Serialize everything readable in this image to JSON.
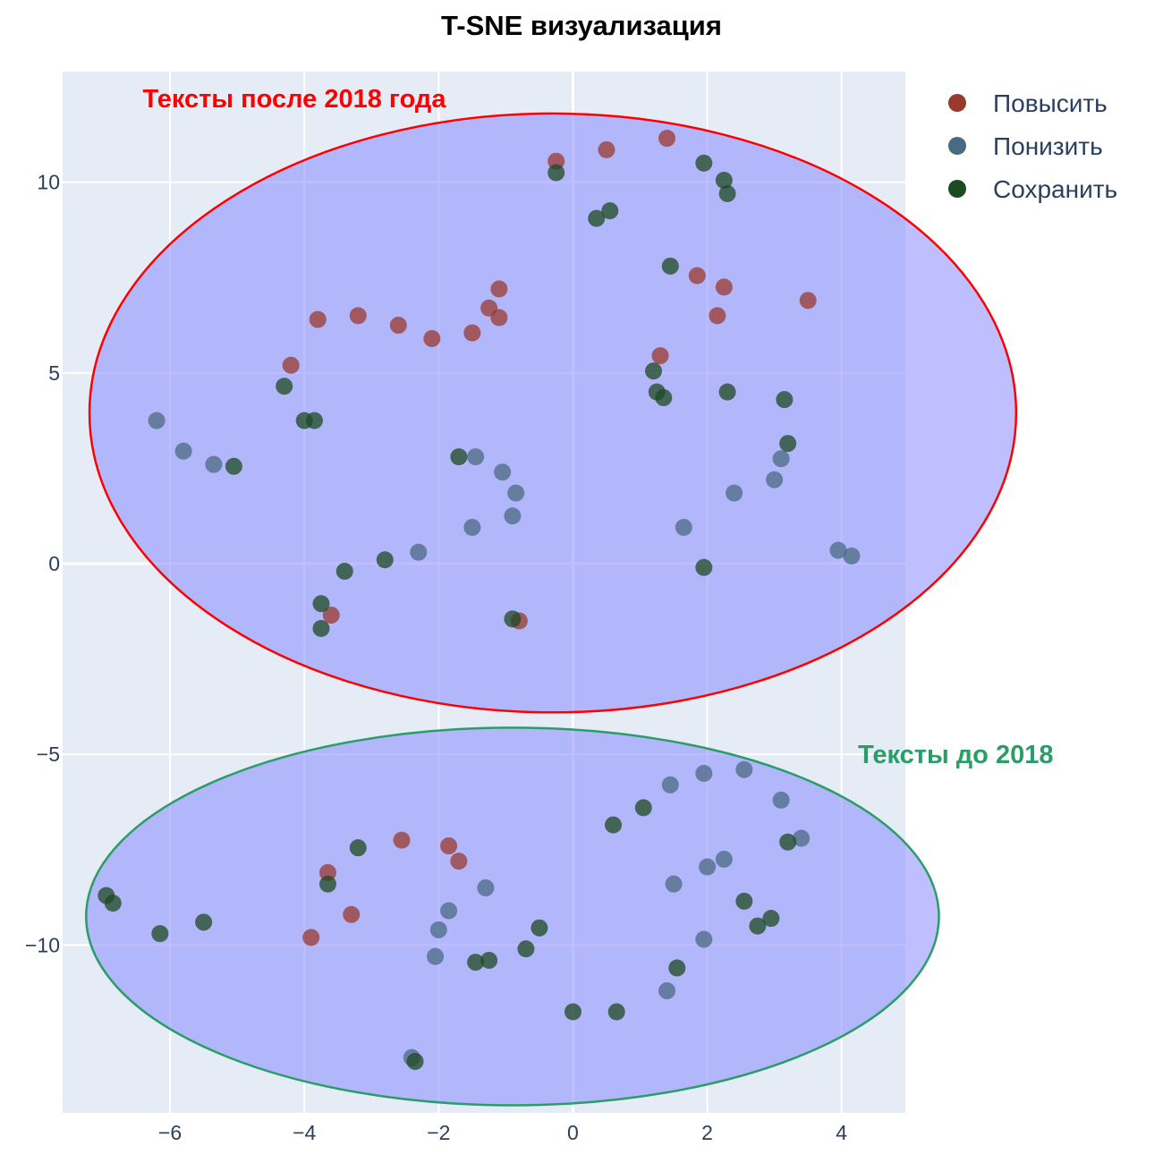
{
  "chart_data": {
    "type": "scatter",
    "title": "T-SNE визуализация",
    "xlim": [
      -7.6,
      4.95
    ],
    "ylim": [
      -14.4,
      12.9
    ],
    "x_ticks": [
      -6,
      -4,
      -2,
      0,
      2,
      4
    ],
    "y_ticks": [
      -10,
      -5,
      0,
      5,
      10
    ],
    "x_tick_labels": [
      "−6",
      "−4",
      "−2",
      "0",
      "2",
      "4"
    ],
    "y_tick_labels": [
      "−10",
      "−5",
      "0",
      "5",
      "10"
    ],
    "grid": true,
    "legend_position": "top-right",
    "series": [
      {
        "name": "Повысить",
        "color": "#9a3a2c",
        "points": [
          [
            -0.25,
            10.55
          ],
          [
            0.5,
            10.85
          ],
          [
            1.4,
            11.15
          ],
          [
            -1.1,
            7.2
          ],
          [
            -1.25,
            6.7
          ],
          [
            -1.1,
            6.45
          ],
          [
            -1.5,
            6.05
          ],
          [
            -2.1,
            5.9
          ],
          [
            -2.6,
            6.25
          ],
          [
            -3.2,
            6.5
          ],
          [
            -3.8,
            6.4
          ],
          [
            -4.2,
            5.2
          ],
          [
            1.85,
            7.55
          ],
          [
            2.25,
            7.25
          ],
          [
            2.15,
            6.5
          ],
          [
            3.5,
            6.9
          ],
          [
            1.3,
            5.45
          ],
          [
            -3.6,
            -1.35
          ],
          [
            -0.8,
            -1.5
          ],
          [
            -2.55,
            -7.25
          ],
          [
            -1.85,
            -7.4
          ],
          [
            -1.7,
            -7.8
          ],
          [
            -3.65,
            -8.1
          ],
          [
            -3.3,
            -9.2
          ],
          [
            -3.9,
            -9.8
          ]
        ]
      },
      {
        "name": "Понизить",
        "color": "#4a6a82",
        "points": [
          [
            -6.2,
            3.75
          ],
          [
            -5.8,
            2.95
          ],
          [
            -5.35,
            2.6
          ],
          [
            -1.45,
            2.8
          ],
          [
            -1.05,
            2.4
          ],
          [
            -0.85,
            1.85
          ],
          [
            -0.9,
            1.25
          ],
          [
            -1.5,
            0.95
          ],
          [
            -2.3,
            0.3
          ],
          [
            3.1,
            2.75
          ],
          [
            3.0,
            2.2
          ],
          [
            2.4,
            1.85
          ],
          [
            1.65,
            0.95
          ],
          [
            3.95,
            0.35
          ],
          [
            4.15,
            0.2
          ],
          [
            1.45,
            -5.8
          ],
          [
            1.95,
            -5.5
          ],
          [
            2.55,
            -5.4
          ],
          [
            3.1,
            -6.2
          ],
          [
            3.4,
            -7.2
          ],
          [
            2.25,
            -7.75
          ],
          [
            2.0,
            -7.95
          ],
          [
            1.5,
            -8.4
          ],
          [
            -1.3,
            -8.5
          ],
          [
            -1.85,
            -9.1
          ],
          [
            -2.0,
            -9.6
          ],
          [
            -2.05,
            -10.3
          ],
          [
            1.95,
            -9.85
          ],
          [
            1.4,
            -11.2
          ],
          [
            -2.4,
            -12.95
          ]
        ]
      },
      {
        "name": "Сохранить",
        "color": "#1e4a22",
        "points": [
          [
            -0.25,
            10.25
          ],
          [
            1.95,
            10.5
          ],
          [
            2.25,
            10.05
          ],
          [
            2.3,
            9.7
          ],
          [
            0.35,
            9.05
          ],
          [
            0.55,
            9.25
          ],
          [
            1.45,
            7.8
          ],
          [
            -4.3,
            4.65
          ],
          [
            -4.0,
            3.75
          ],
          [
            -3.85,
            3.75
          ],
          [
            -5.05,
            2.55
          ],
          [
            -1.7,
            2.8
          ],
          [
            1.2,
            5.05
          ],
          [
            1.25,
            4.5
          ],
          [
            1.35,
            4.35
          ],
          [
            2.3,
            4.5
          ],
          [
            3.15,
            4.3
          ],
          [
            3.2,
            3.15
          ],
          [
            -2.8,
            0.1
          ],
          [
            -3.4,
            -0.2
          ],
          [
            -3.75,
            -1.05
          ],
          [
            -3.75,
            -1.7
          ],
          [
            -0.9,
            -1.45
          ],
          [
            1.95,
            -0.1
          ],
          [
            0.6,
            -6.85
          ],
          [
            1.05,
            -6.4
          ],
          [
            3.2,
            -7.3
          ],
          [
            2.55,
            -8.85
          ],
          [
            2.95,
            -9.3
          ],
          [
            2.75,
            -9.5
          ],
          [
            1.55,
            -10.6
          ],
          [
            -6.95,
            -8.7
          ],
          [
            -6.85,
            -8.9
          ],
          [
            -6.15,
            -9.7
          ],
          [
            -5.5,
            -9.4
          ],
          [
            -3.2,
            -7.45
          ],
          [
            -3.65,
            -8.4
          ],
          [
            -0.5,
            -9.55
          ],
          [
            -0.7,
            -10.1
          ],
          [
            -1.45,
            -10.45
          ],
          [
            -1.25,
            -10.4
          ],
          [
            0.0,
            -11.75
          ],
          [
            0.65,
            -11.75
          ],
          [
            -2.35,
            -13.05
          ]
        ]
      }
    ],
    "regions": [
      {
        "label": "Тексты после 2018 года",
        "stroke": "#ff0000",
        "fill": "#8080ff",
        "cx": -0.3,
        "cy": 3.95,
        "rx": 6.9,
        "ry": 7.85,
        "label_x": -4.15,
        "label_y": 12.2
      },
      {
        "label": "Тексты до 2018",
        "stroke": "#2a9d68",
        "fill": "#8080ff",
        "cx": -0.9,
        "cy": -9.25,
        "rx": 6.35,
        "ry": 4.95,
        "label_x": 5.7,
        "label_y": -5.0
      }
    ]
  }
}
